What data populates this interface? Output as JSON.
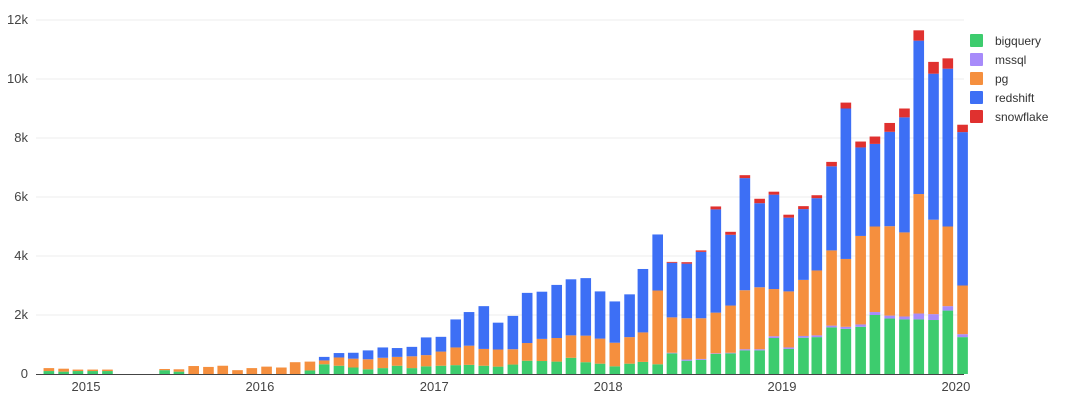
{
  "chart_data": {
    "type": "bar",
    "stacked": true,
    "x_ticks": [
      "2015",
      "2016",
      "2017",
      "2018",
      "2019",
      "2020"
    ],
    "y_ticks": [
      "0",
      "2k",
      "4k",
      "6k",
      "8k",
      "10k",
      "12k"
    ],
    "ylim": [
      0,
      12000
    ],
    "grid": true,
    "legend_position": "top-right",
    "x": [
      "2014-10",
      "2014-11",
      "2014-12",
      "2015-01",
      "2015-02",
      "2015-03",
      "2015-04",
      "2015-05",
      "2015-06",
      "2015-07",
      "2015-08",
      "2015-09",
      "2015-10",
      "2015-11",
      "2015-12",
      "2016-01",
      "2016-02",
      "2016-03",
      "2016-04",
      "2016-05",
      "2016-06",
      "2016-07",
      "2016-08",
      "2016-09",
      "2016-10",
      "2016-11",
      "2016-12",
      "2017-01",
      "2017-02",
      "2017-03",
      "2017-04",
      "2017-05",
      "2017-06",
      "2017-07",
      "2017-08",
      "2017-09",
      "2017-10",
      "2017-11",
      "2017-12",
      "2018-01",
      "2018-02",
      "2018-03",
      "2018-04",
      "2018-05",
      "2018-06",
      "2018-07",
      "2018-08",
      "2018-09",
      "2018-10",
      "2018-11",
      "2018-12",
      "2019-01",
      "2019-02",
      "2019-03",
      "2019-04",
      "2019-05",
      "2019-06",
      "2019-07",
      "2019-08",
      "2019-09",
      "2019-10",
      "2019-11",
      "2019-12",
      "2020-01"
    ],
    "series": [
      {
        "name": "bigquery",
        "color": "#3dcc6e",
        "values": [
          100,
          80,
          100,
          100,
          100,
          0,
          0,
          0,
          130,
          80,
          0,
          0,
          0,
          0,
          0,
          0,
          0,
          0,
          120,
          330,
          280,
          220,
          160,
          200,
          280,
          200,
          260,
          280,
          300,
          310,
          280,
          250,
          320,
          450,
          440,
          420,
          550,
          400,
          350,
          260,
          350,
          410,
          330,
          700,
          450,
          480,
          680,
          700,
          800,
          800,
          1220,
          850,
          1230,
          1250,
          1580,
          1530,
          1600,
          2000,
          1880,
          1850,
          1850,
          1830,
          2150,
          1250
        ]
      },
      {
        "name": "mssql",
        "color": "#a78bfa",
        "values": [
          0,
          0,
          0,
          0,
          0,
          0,
          0,
          0,
          0,
          0,
          0,
          0,
          0,
          0,
          0,
          0,
          0,
          0,
          0,
          0,
          0,
          0,
          0,
          0,
          0,
          0,
          0,
          0,
          0,
          0,
          0,
          0,
          0,
          0,
          0,
          0,
          0,
          0,
          0,
          0,
          0,
          0,
          0,
          20,
          40,
          30,
          20,
          20,
          40,
          40,
          60,
          50,
          60,
          60,
          60,
          70,
          80,
          100,
          100,
          100,
          200,
          200,
          150,
          100
        ]
      },
      {
        "name": "pg",
        "color": "#f58f3e",
        "values": [
          100,
          100,
          50,
          50,
          50,
          0,
          0,
          0,
          40,
          80,
          270,
          240,
          280,
          130,
          200,
          250,
          220,
          400,
          300,
          130,
          280,
          300,
          340,
          350,
          300,
          400,
          380,
          480,
          600,
          650,
          570,
          580,
          520,
          600,
          750,
          800,
          760,
          900,
          850,
          800,
          900,
          1000,
          2500,
          1200,
          1400,
          1380,
          1380,
          1600,
          2000,
          2100,
          1600,
          1900,
          1900,
          2200,
          2550,
          2300,
          3000,
          2900,
          3030,
          2850,
          4050,
          3200,
          2700,
          1650
        ]
      },
      {
        "name": "redshift",
        "color": "#3d6ff5",
        "values": [
          0,
          0,
          0,
          0,
          0,
          0,
          0,
          0,
          0,
          0,
          0,
          0,
          0,
          0,
          0,
          0,
          0,
          0,
          0,
          120,
          150,
          200,
          300,
          350,
          300,
          320,
          600,
          500,
          950,
          1140,
          1450,
          910,
          1130,
          1700,
          1600,
          1800,
          1900,
          1950,
          1600,
          1400,
          1450,
          2150,
          1900,
          1850,
          1850,
          2250,
          3500,
          2400,
          3800,
          2850,
          3200,
          2500,
          2400,
          2450,
          2850,
          5100,
          3000,
          2800,
          3200,
          3900,
          5200,
          4950,
          5350,
          5200
        ]
      },
      {
        "name": "snowflake",
        "color": "#e0312f",
        "values": [
          0,
          0,
          0,
          0,
          0,
          0,
          0,
          0,
          0,
          0,
          0,
          0,
          0,
          0,
          0,
          0,
          0,
          0,
          0,
          0,
          0,
          0,
          0,
          0,
          0,
          0,
          0,
          0,
          0,
          0,
          0,
          0,
          0,
          0,
          0,
          0,
          0,
          0,
          0,
          0,
          0,
          0,
          0,
          30,
          50,
          50,
          100,
          100,
          100,
          150,
          100,
          100,
          100,
          100,
          150,
          200,
          200,
          250,
          300,
          300,
          350,
          400,
          350,
          250
        ]
      }
    ]
  }
}
